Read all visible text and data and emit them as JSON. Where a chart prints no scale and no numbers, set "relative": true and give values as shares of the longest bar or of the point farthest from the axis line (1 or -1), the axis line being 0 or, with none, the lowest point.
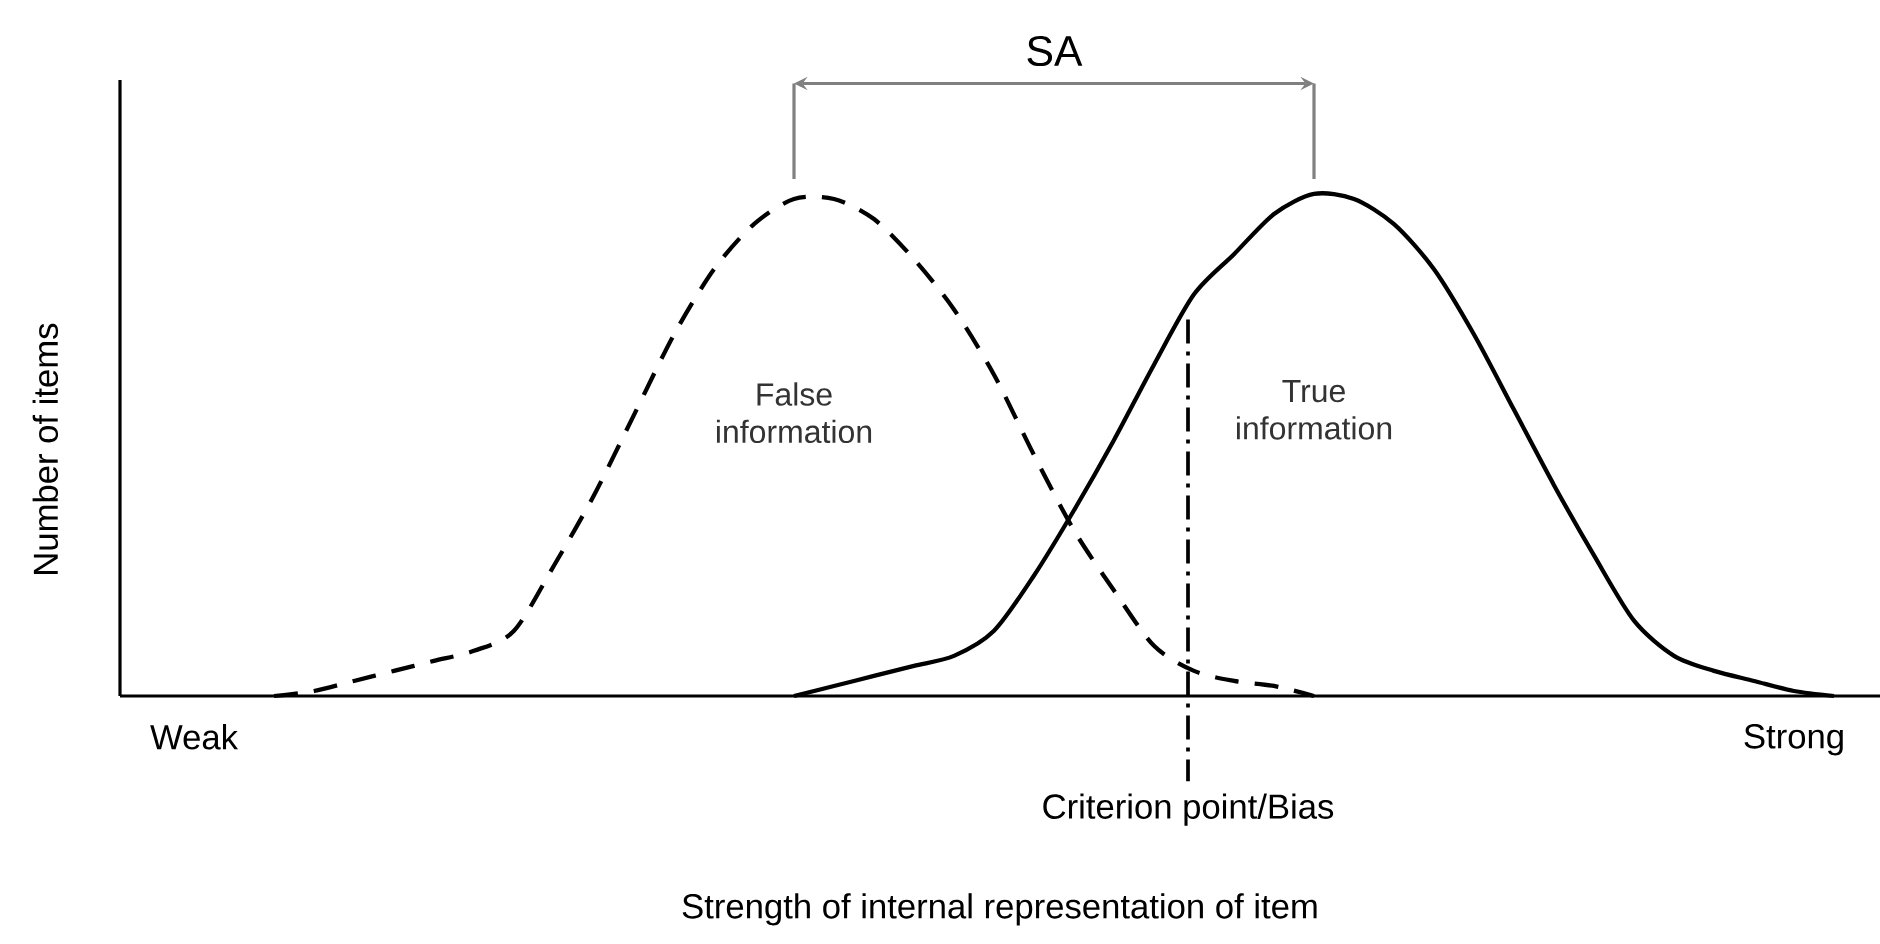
{
  "chart_data": {
    "type": "line",
    "relative": true,
    "xlabel": "Strength of internal representation of item",
    "ylabel": "Number of items",
    "categories": [
      "Weak",
      null,
      null,
      null,
      null,
      null,
      null,
      null,
      null,
      null,
      null,
      null,
      null,
      null,
      null,
      null,
      null,
      null,
      null,
      null,
      null,
      null,
      null,
      null,
      null,
      null,
      null,
      null,
      null,
      null,
      null,
      null,
      null,
      null,
      null,
      null,
      null,
      null,
      null,
      null,
      "Strong",
      null
    ],
    "series": [
      {
        "name": "False information",
        "color": "#000000",
        "line_style": "dashed",
        "values": [
          null,
          null,
          0,
          0.01,
          0.03,
          0.05,
          0.07,
          0.09,
          0.13,
          0.26,
          0.4,
          0.56,
          0.72,
          0.85,
          0.94,
          0.99,
          0.99,
          0.95,
          0.87,
          0.77,
          0.64,
          0.48,
          0.33,
          0.21,
          0.1,
          0.05,
          0.03,
          0.02,
          0,
          null,
          null,
          null,
          null,
          null,
          null,
          null,
          null,
          null,
          null,
          null,
          null,
          null
        ]
      },
      {
        "name": "True information",
        "color": "#000000",
        "line_style": "solid",
        "values": [
          null,
          null,
          null,
          null,
          null,
          null,
          null,
          null,
          null,
          null,
          null,
          null,
          null,
          null,
          null,
          0,
          0.02,
          0.04,
          0.06,
          0.08,
          0.13,
          0.24,
          0.37,
          0.51,
          0.66,
          0.8,
          0.88,
          0.96,
          1,
          0.99,
          0.94,
          0.85,
          0.72,
          0.57,
          0.42,
          0.28,
          0.15,
          0.08,
          0.05,
          0.03,
          0.01,
          0
        ]
      }
    ],
    "annotations": [
      "SA",
      "Criterion point/Bias"
    ]
  }
}
